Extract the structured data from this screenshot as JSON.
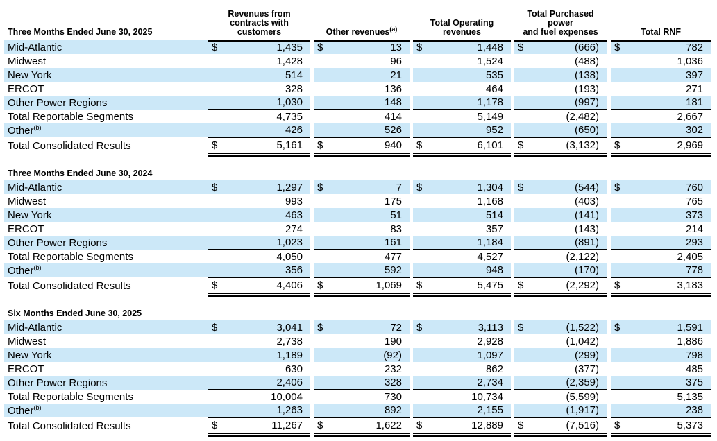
{
  "document": {
    "type_label": "segment operating data table",
    "background": "#ffffff"
  },
  "table": {
    "currency": "$",
    "highlight_color": "#cce8f8",
    "columns": [
      {
        "text": "Revenues from\ncontracts with\ncustomers",
        "sup": ""
      },
      {
        "text": "Other revenues",
        "sup": "(a)"
      },
      {
        "text": "Total Operating\nrevenues",
        "sup": ""
      },
      {
        "text": "Total Purchased power\nand fuel expenses",
        "sup": ""
      },
      {
        "text": "Total RNF",
        "sup": ""
      }
    ],
    "sections": [
      {
        "title": "Three Months Ended June 30, 2025",
        "column_headers_visible": true,
        "rows": [
          {
            "label": "Mid-Atlantic",
            "label_sup": "",
            "dollar": true,
            "shaded": true,
            "rule": "none",
            "values": [
              "1,435",
              "13",
              "1,448",
              "(666)",
              "782"
            ]
          },
          {
            "label": "Midwest",
            "label_sup": "",
            "dollar": false,
            "shaded": false,
            "rule": "none",
            "values": [
              "1,428",
              "96",
              "1,524",
              "(488)",
              "1,036"
            ]
          },
          {
            "label": "New York",
            "label_sup": "",
            "dollar": false,
            "shaded": true,
            "rule": "none",
            "values": [
              "514",
              "21",
              "535",
              "(138)",
              "397"
            ]
          },
          {
            "label": "ERCOT",
            "label_sup": "",
            "dollar": false,
            "shaded": false,
            "rule": "none",
            "values": [
              "328",
              "136",
              "464",
              "(193)",
              "271"
            ]
          },
          {
            "label": "Other Power Regions",
            "label_sup": "",
            "dollar": false,
            "shaded": true,
            "rule": "single",
            "values": [
              "1,030",
              "148",
              "1,178",
              "(997)",
              "181"
            ]
          },
          {
            "label": "Total Reportable Segments",
            "label_sup": "",
            "dollar": false,
            "shaded": false,
            "rule": "none",
            "values": [
              "4,735",
              "414",
              "5,149",
              "(2,482)",
              "2,667"
            ]
          },
          {
            "label": "Other",
            "label_sup": "(b)",
            "dollar": false,
            "shaded": true,
            "rule": "single",
            "values": [
              "426",
              "526",
              "952",
              "(650)",
              "302"
            ]
          },
          {
            "label": "Total Consolidated Results",
            "label_sup": "",
            "dollar": true,
            "shaded": false,
            "rule": "double",
            "values": [
              "5,161",
              "940",
              "6,101",
              "(3,132)",
              "2,969"
            ]
          }
        ]
      },
      {
        "title": "Three Months Ended June 30, 2024",
        "column_headers_visible": false,
        "rows": [
          {
            "label": "Mid-Atlantic",
            "label_sup": "",
            "dollar": true,
            "shaded": true,
            "rule": "none",
            "values": [
              "1,297",
              "7",
              "1,304",
              "(544)",
              "760"
            ]
          },
          {
            "label": "Midwest",
            "label_sup": "",
            "dollar": false,
            "shaded": false,
            "rule": "none",
            "values": [
              "993",
              "175",
              "1,168",
              "(403)",
              "765"
            ]
          },
          {
            "label": "New York",
            "label_sup": "",
            "dollar": false,
            "shaded": true,
            "rule": "none",
            "values": [
              "463",
              "51",
              "514",
              "(141)",
              "373"
            ]
          },
          {
            "label": "ERCOT",
            "label_sup": "",
            "dollar": false,
            "shaded": false,
            "rule": "none",
            "values": [
              "274",
              "83",
              "357",
              "(143)",
              "214"
            ]
          },
          {
            "label": "Other Power Regions",
            "label_sup": "",
            "dollar": false,
            "shaded": true,
            "rule": "single",
            "values": [
              "1,023",
              "161",
              "1,184",
              "(891)",
              "293"
            ]
          },
          {
            "label": "Total Reportable Segments",
            "label_sup": "",
            "dollar": false,
            "shaded": false,
            "rule": "none",
            "values": [
              "4,050",
              "477",
              "4,527",
              "(2,122)",
              "2,405"
            ]
          },
          {
            "label": "Other",
            "label_sup": "(b)",
            "dollar": false,
            "shaded": true,
            "rule": "single",
            "values": [
              "356",
              "592",
              "948",
              "(170)",
              "778"
            ]
          },
          {
            "label": "Total Consolidated Results",
            "label_sup": "",
            "dollar": true,
            "shaded": false,
            "rule": "double",
            "values": [
              "4,406",
              "1,069",
              "5,475",
              "(2,292)",
              "3,183"
            ]
          }
        ]
      },
      {
        "title": "Six Months Ended June 30, 2025",
        "column_headers_visible": false,
        "rows": [
          {
            "label": "Mid-Atlantic",
            "label_sup": "",
            "dollar": true,
            "shaded": true,
            "rule": "none",
            "values": [
              "3,041",
              "72",
              "3,113",
              "(1,522)",
              "1,591"
            ]
          },
          {
            "label": "Midwest",
            "label_sup": "",
            "dollar": false,
            "shaded": false,
            "rule": "none",
            "values": [
              "2,738",
              "190",
              "2,928",
              "(1,042)",
              "1,886"
            ]
          },
          {
            "label": "New York",
            "label_sup": "",
            "dollar": false,
            "shaded": true,
            "rule": "none",
            "values": [
              "1,189",
              "(92)",
              "1,097",
              "(299)",
              "798"
            ]
          },
          {
            "label": "ERCOT",
            "label_sup": "",
            "dollar": false,
            "shaded": false,
            "rule": "none",
            "values": [
              "630",
              "232",
              "862",
              "(377)",
              "485"
            ]
          },
          {
            "label": "Other Power Regions",
            "label_sup": "",
            "dollar": false,
            "shaded": true,
            "rule": "single",
            "values": [
              "2,406",
              "328",
              "2,734",
              "(2,359)",
              "375"
            ]
          },
          {
            "label": "Total Reportable Segments",
            "label_sup": "",
            "dollar": false,
            "shaded": false,
            "rule": "none",
            "values": [
              "10,004",
              "730",
              "10,734",
              "(5,599)",
              "5,135"
            ]
          },
          {
            "label": "Other",
            "label_sup": "(b)",
            "dollar": false,
            "shaded": true,
            "rule": "single",
            "values": [
              "1,263",
              "892",
              "2,155",
              "(1,917)",
              "238"
            ]
          },
          {
            "label": "Total Consolidated Results",
            "label_sup": "",
            "dollar": true,
            "shaded": false,
            "rule": "double",
            "values": [
              "11,267",
              "1,622",
              "12,889",
              "(7,516)",
              "5,373"
            ]
          }
        ]
      }
    ]
  }
}
